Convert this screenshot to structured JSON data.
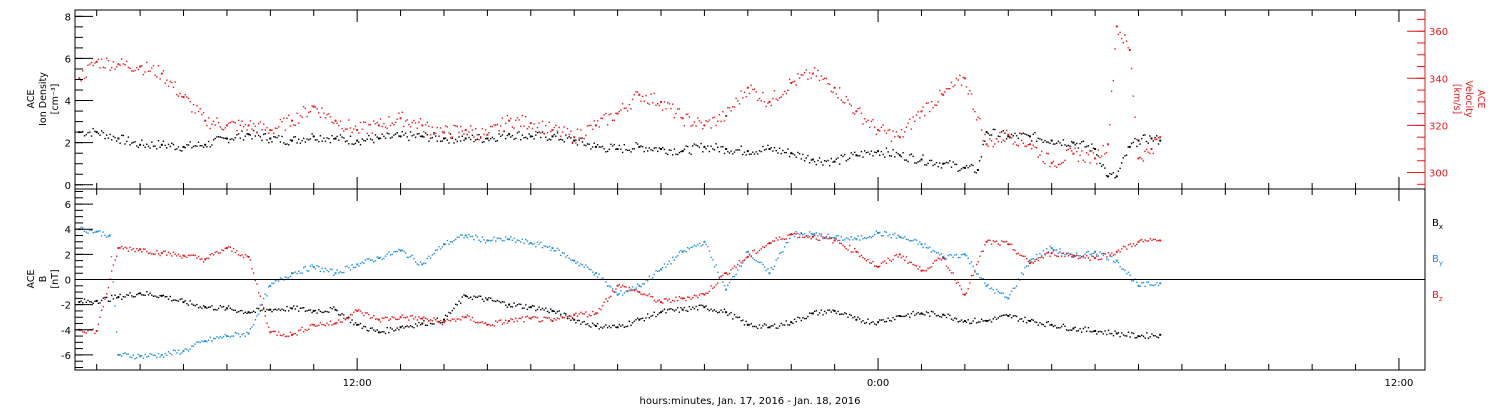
{
  "footer": {
    "xlabel": "hours:minutes, Jan. 17, 2016 - Jan. 18, 2016"
  },
  "colors": {
    "black": "#000000",
    "red": "#e41a1c",
    "blue": "#1f8fe0",
    "axis": "#000000"
  },
  "chart_data": [
    {
      "type": "scatter",
      "panel": "top",
      "ylabel_left": [
        "ACE",
        "Ion Density",
        "[cm⁻³]"
      ],
      "ylabel_right": [
        "ACE",
        "Velocity",
        "[km/s]"
      ],
      "x_unit": "hours since Jan. 17, 2016 00:00",
      "xlim": [
        5.5,
        36.6
      ],
      "x_ticks": [
        {
          "x": 12,
          "label": "12:00"
        },
        {
          "x": 24,
          "label": "0:00"
        },
        {
          "x": 36,
          "label": "12:00"
        }
      ],
      "ylim_left": [
        -0.2,
        8.3
      ],
      "yticks_left": [
        {
          "y": 0,
          "label": "0"
        },
        {
          "y": 2,
          "label": "2"
        },
        {
          "y": 4,
          "label": "4"
        },
        {
          "y": 6,
          "label": "6"
        },
        {
          "y": 8,
          "label": "8"
        }
      ],
      "ylim_right": [
        293,
        369
      ],
      "yticks_right": [
        {
          "y": 300,
          "label": "300"
        },
        {
          "y": 320,
          "label": "320"
        },
        {
          "y": 340,
          "label": "340"
        },
        {
          "y": 360,
          "label": "360"
        }
      ],
      "series": [
        {
          "key": "density",
          "axis": "left",
          "color": "#000000",
          "x": [
            5.6,
            6.0,
            6.5,
            7.0,
            7.5,
            8.0,
            8.5,
            9.0,
            9.5,
            10.0,
            10.5,
            11.0,
            11.5,
            12.0,
            12.5,
            13.0,
            13.5,
            14.0,
            14.5,
            15.0,
            15.5,
            16.0,
            16.5,
            17.0,
            17.5,
            18.0,
            18.5,
            19.0,
            19.5,
            20.0,
            20.5,
            21.0,
            21.5,
            22.0,
            22.5,
            23.0,
            23.5,
            24.0,
            24.5,
            25.0,
            25.5,
            26.0,
            26.3,
            26.5,
            27.0,
            27.5,
            28.0,
            28.5,
            29.0,
            29.3,
            29.5,
            29.8,
            30.0,
            30.3,
            30.5
          ],
          "y": [
            2.5,
            2.5,
            2.2,
            1.9,
            1.9,
            1.8,
            1.9,
            2.2,
            2.4,
            2.2,
            2.1,
            2.3,
            2.2,
            2.1,
            2.2,
            2.3,
            2.3,
            2.2,
            2.2,
            2.2,
            2.4,
            2.3,
            2.3,
            2.1,
            1.8,
            1.7,
            1.8,
            1.7,
            1.6,
            1.8,
            1.7,
            1.6,
            1.7,
            1.5,
            1.2,
            1.1,
            1.4,
            1.6,
            1.4,
            1.2,
            1.0,
            0.8,
            0.7,
            2.5,
            2.3,
            2.3,
            2.1,
            2.0,
            1.7,
            0.4,
            0.4,
            1.8,
            2.1,
            2.2,
            2.1
          ]
        },
        {
          "key": "velocity",
          "axis": "right",
          "color": "#e41a1c",
          "x": [
            5.6,
            6.0,
            6.5,
            7.0,
            7.5,
            8.0,
            8.5,
            9.0,
            9.5,
            10.0,
            10.5,
            11.0,
            11.5,
            12.0,
            12.5,
            13.0,
            13.5,
            14.0,
            14.5,
            15.0,
            15.5,
            16.0,
            16.5,
            17.0,
            17.5,
            18.0,
            18.5,
            19.0,
            19.5,
            20.0,
            20.5,
            21.0,
            21.5,
            22.0,
            22.5,
            23.0,
            23.5,
            24.0,
            24.5,
            25.0,
            25.5,
            26.0,
            26.5,
            27.0,
            27.5,
            28.0,
            28.5,
            29.0,
            29.3,
            29.5,
            29.8,
            30.0,
            30.3,
            30.5
          ],
          "y": [
            340,
            347,
            346,
            345,
            342,
            332,
            322,
            320,
            320,
            318,
            322,
            328,
            322,
            318,
            320,
            323,
            320,
            317,
            318,
            316,
            322,
            321,
            318,
            315,
            320,
            325,
            333,
            330,
            323,
            320,
            324,
            336,
            330,
            338,
            342,
            336,
            326,
            318,
            315,
            326,
            333,
            340,
            312,
            316,
            312,
            304,
            308,
            306,
            312,
            362,
            352,
            306,
            310,
            315
          ]
        }
      ]
    },
    {
      "type": "scatter",
      "panel": "bottom",
      "ylabel_left": [
        "ACE",
        "B",
        "[nT]"
      ],
      "xlim": [
        5.5,
        36.6
      ],
      "ylim": [
        -7.2,
        7.2
      ],
      "yticks": [
        {
          "y": -6,
          "label": "-6"
        },
        {
          "y": -4,
          "label": "-4"
        },
        {
          "y": -2,
          "label": "-2"
        },
        {
          "y": 0,
          "label": "0"
        },
        {
          "y": 2,
          "label": "2"
        },
        {
          "y": 4,
          "label": "4"
        },
        {
          "y": 6,
          "label": "6"
        }
      ],
      "zero_line": 0,
      "legend_placement": "right",
      "series": [
        {
          "key": "bx",
          "name": "B",
          "sub": "x",
          "color": "#000000",
          "x": [
            5.6,
            6.0,
            6.5,
            7.0,
            7.5,
            8.0,
            8.5,
            9.0,
            9.5,
            10.0,
            10.5,
            11.0,
            11.5,
            12.0,
            12.5,
            13.0,
            13.5,
            14.0,
            14.5,
            15.0,
            15.5,
            16.0,
            16.5,
            17.0,
            17.5,
            18.0,
            18.5,
            19.0,
            19.5,
            20.0,
            20.5,
            21.0,
            21.5,
            22.0,
            22.5,
            23.0,
            23.5,
            24.0,
            24.5,
            25.0,
            25.5,
            26.0,
            26.5,
            27.0,
            27.5,
            28.0,
            28.5,
            29.0,
            29.5,
            30.0,
            30.5
          ],
          "y": [
            -1.8,
            -1.7,
            -1.4,
            -1.1,
            -1.3,
            -1.8,
            -2.2,
            -2.3,
            -2.6,
            -2.4,
            -2.3,
            -2.5,
            -2.4,
            -3.6,
            -4.2,
            -3.8,
            -3.5,
            -3.2,
            -1.3,
            -1.6,
            -2.0,
            -2.2,
            -2.5,
            -3.2,
            -3.7,
            -3.8,
            -3.2,
            -2.6,
            -2.4,
            -2.2,
            -2.6,
            -3.6,
            -3.8,
            -3.4,
            -2.7,
            -2.5,
            -3.2,
            -3.4,
            -2.9,
            -2.7,
            -2.8,
            -3.3,
            -3.3,
            -2.9,
            -3.3,
            -3.6,
            -3.9,
            -4.1,
            -4.3,
            -4.5,
            -4.4
          ]
        },
        {
          "key": "by",
          "name": "B",
          "sub": "y",
          "color": "#1f8fe0",
          "x": [
            5.6,
            6.0,
            6.3,
            6.5,
            7.0,
            7.5,
            8.0,
            8.5,
            9.0,
            9.5,
            10.0,
            10.5,
            11.0,
            11.5,
            12.0,
            12.5,
            13.0,
            13.5,
            14.0,
            14.5,
            15.0,
            15.5,
            16.0,
            16.5,
            17.0,
            17.5,
            18.0,
            18.5,
            19.0,
            19.5,
            20.0,
            20.5,
            21.0,
            21.5,
            22.0,
            22.5,
            23.0,
            23.5,
            24.0,
            24.5,
            25.0,
            25.5,
            26.0,
            26.5,
            27.0,
            27.5,
            28.0,
            28.5,
            29.0,
            29.5,
            30.0,
            30.5
          ],
          "y": [
            4.0,
            3.8,
            3.5,
            -6.0,
            -6.1,
            -6.0,
            -5.7,
            -4.9,
            -4.5,
            -4.3,
            -0.5,
            0.5,
            1.0,
            0.5,
            1.2,
            1.7,
            2.3,
            1.2,
            2.8,
            3.5,
            3.1,
            3.2,
            2.9,
            2.5,
            1.5,
            0.5,
            -1.2,
            -0.5,
            0.8,
            2.2,
            3.0,
            -0.8,
            2.2,
            0.5,
            3.6,
            3.6,
            3.3,
            3.2,
            3.7,
            3.4,
            2.8,
            1.8,
            2.0,
            -0.5,
            -1.5,
            1.5,
            2.5,
            1.8,
            2.2,
            1.5,
            -0.5,
            -0.3
          ]
        },
        {
          "key": "bz",
          "name": "B",
          "sub": "z",
          "color": "#e41a1c",
          "x": [
            5.6,
            6.0,
            6.5,
            7.0,
            7.5,
            8.0,
            8.5,
            9.0,
            9.5,
            10.0,
            10.5,
            11.0,
            11.5,
            12.0,
            12.5,
            13.0,
            13.5,
            14.0,
            14.5,
            15.0,
            15.5,
            16.0,
            16.5,
            17.0,
            17.5,
            18.0,
            18.5,
            19.0,
            19.5,
            20.0,
            20.5,
            21.0,
            21.5,
            22.0,
            22.5,
            23.0,
            23.5,
            24.0,
            24.5,
            25.0,
            25.5,
            26.0,
            26.5,
            27.0,
            27.5,
            28.0,
            28.5,
            29.0,
            29.5,
            30.0,
            30.5
          ],
          "y": [
            -4.0,
            -4.1,
            2.5,
            2.4,
            2.1,
            1.9,
            1.6,
            2.5,
            1.8,
            -4.2,
            -4.4,
            -3.6,
            -3.5,
            -2.5,
            -3.2,
            -3.0,
            -3.1,
            -3.4,
            -3.0,
            -3.6,
            -3.3,
            -3.1,
            -3.3,
            -2.8,
            -2.7,
            -0.5,
            -1.0,
            -1.8,
            -1.5,
            -1.2,
            0.5,
            1.8,
            2.9,
            3.6,
            3.4,
            3.1,
            2.2,
            1.0,
            2.0,
            0.7,
            1.7,
            -1.2,
            3.0,
            2.8,
            1.3,
            2.1,
            1.9,
            1.7,
            2.2,
            3.0,
            3.1
          ]
        }
      ]
    }
  ]
}
